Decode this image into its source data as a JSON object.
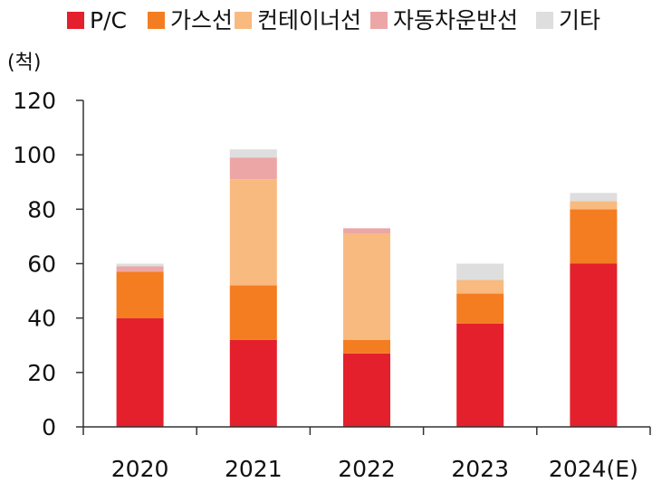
{
  "chart_data": {
    "type": "bar",
    "stacked": true,
    "unit_label": "(척)",
    "categories": [
      "2020",
      "2021",
      "2022",
      "2023",
      "2024(E)"
    ],
    "series": [
      {
        "name": "P/C",
        "color": "#e3202c",
        "values": [
          40,
          32,
          27,
          38,
          60
        ]
      },
      {
        "name": "가스선",
        "color": "#f47d22",
        "values": [
          17,
          20,
          5,
          11,
          20
        ]
      },
      {
        "name": "컨테이너선",
        "color": "#f9ba7f",
        "values": [
          0,
          39,
          39,
          5,
          3
        ]
      },
      {
        "name": "자동차운반선",
        "color": "#eca6a6",
        "values": [
          2,
          8,
          2,
          0,
          0
        ]
      },
      {
        "name": "기타",
        "color": "#dedede",
        "values": [
          1,
          3,
          0,
          6,
          3
        ]
      }
    ],
    "ylim": [
      0,
      120
    ],
    "yticks": [
      "0",
      "20",
      "40",
      "60",
      "80",
      "100",
      "120"
    ],
    "grid": false,
    "legend_position": "top"
  }
}
